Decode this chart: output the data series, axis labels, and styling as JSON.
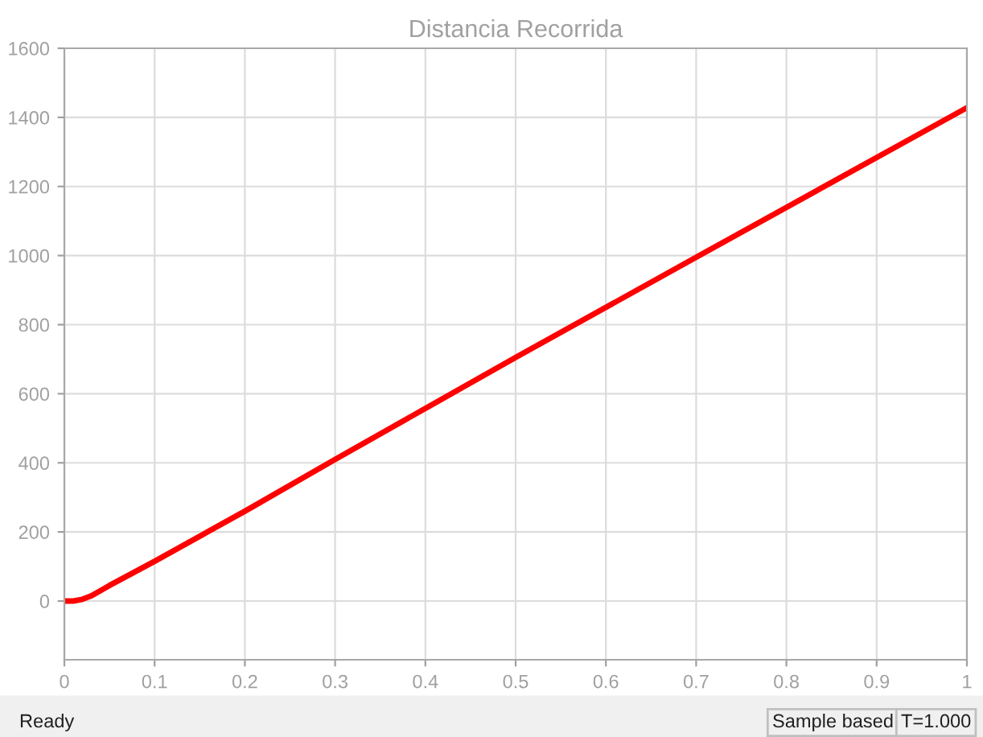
{
  "chart_data": {
    "type": "line",
    "title": "Distancia Recorrida",
    "x": [
      0,
      0.01,
      0.02,
      0.03,
      0.05,
      0.1,
      0.2,
      0.3,
      0.5,
      0.7,
      1
    ],
    "series": [
      {
        "color": "#ff0000",
        "values": [
          0,
          0,
          5,
          15,
          45,
          115,
          260,
          410,
          705,
          995,
          1428
        ]
      }
    ],
    "xlim": [
      0,
      1
    ],
    "xticks": [
      0,
      0.1,
      0.2,
      0.3,
      0.4,
      0.5,
      0.6,
      0.7,
      0.8,
      0.9,
      1
    ],
    "ylim": [
      -170,
      1600
    ],
    "yticks": [
      0,
      200,
      400,
      600,
      800,
      1000,
      1200,
      1400,
      1600
    ],
    "grid": true,
    "marker": "none",
    "line_style": "solid",
    "annotations": [
      "Ready",
      "Sample based",
      "T=1.000"
    ]
  }
}
